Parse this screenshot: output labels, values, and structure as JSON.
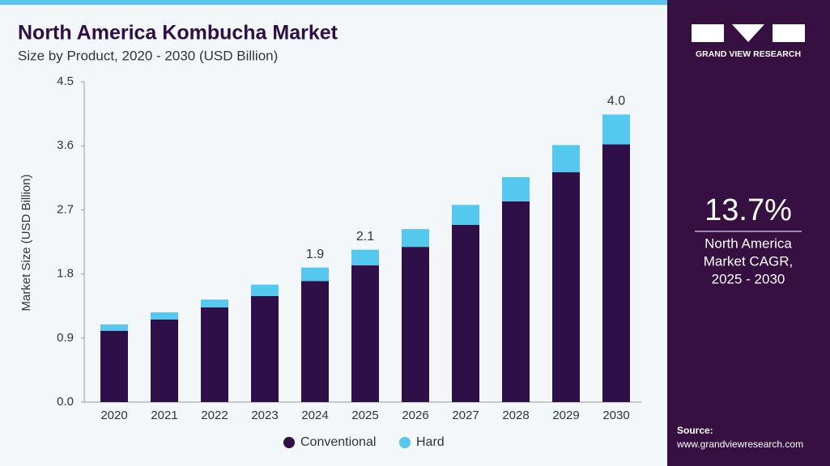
{
  "chart_data": {
    "type": "stacked_bar",
    "title": "North America Kombucha Market",
    "subtitle": "Size by Product, 2020 - 2030 (USD Billion)",
    "y_label": "Market Size (USD Billion)",
    "categories": [
      "2020",
      "2021",
      "2022",
      "2023",
      "2024",
      "2025",
      "2026",
      "2027",
      "2028",
      "2029",
      "2030"
    ],
    "series": [
      {
        "name": "Conventional",
        "color": "#2e0f47",
        "values": [
          1.0,
          1.16,
          1.33,
          1.49,
          1.7,
          1.92,
          2.18,
          2.49,
          2.82,
          3.23,
          3.62
        ]
      },
      {
        "name": "Hard",
        "color": "#55c8f0",
        "values": [
          0.09,
          0.1,
          0.11,
          0.16,
          0.19,
          0.22,
          0.25,
          0.28,
          0.34,
          0.38,
          0.42
        ]
      }
    ],
    "total_labels": [
      null,
      null,
      null,
      null,
      "1.9",
      "2.1",
      null,
      null,
      null,
      null,
      "4.0"
    ],
    "ylim": [
      0,
      4.5
    ],
    "yticks": [
      {
        "value": 0,
        "label": "0.0"
      },
      0.9,
      1.8,
      2.7,
      3.6,
      4.5
    ],
    "legend": "bottom"
  },
  "side_panel": {
    "brand": "GRAND VIEW RESEARCH",
    "stat": "13.7%",
    "stat_caption": [
      "North America",
      "Market CAGR,",
      "2025 - 2030"
    ],
    "source_label": "Source:",
    "source_url": "www.grandviewresearch.com"
  }
}
